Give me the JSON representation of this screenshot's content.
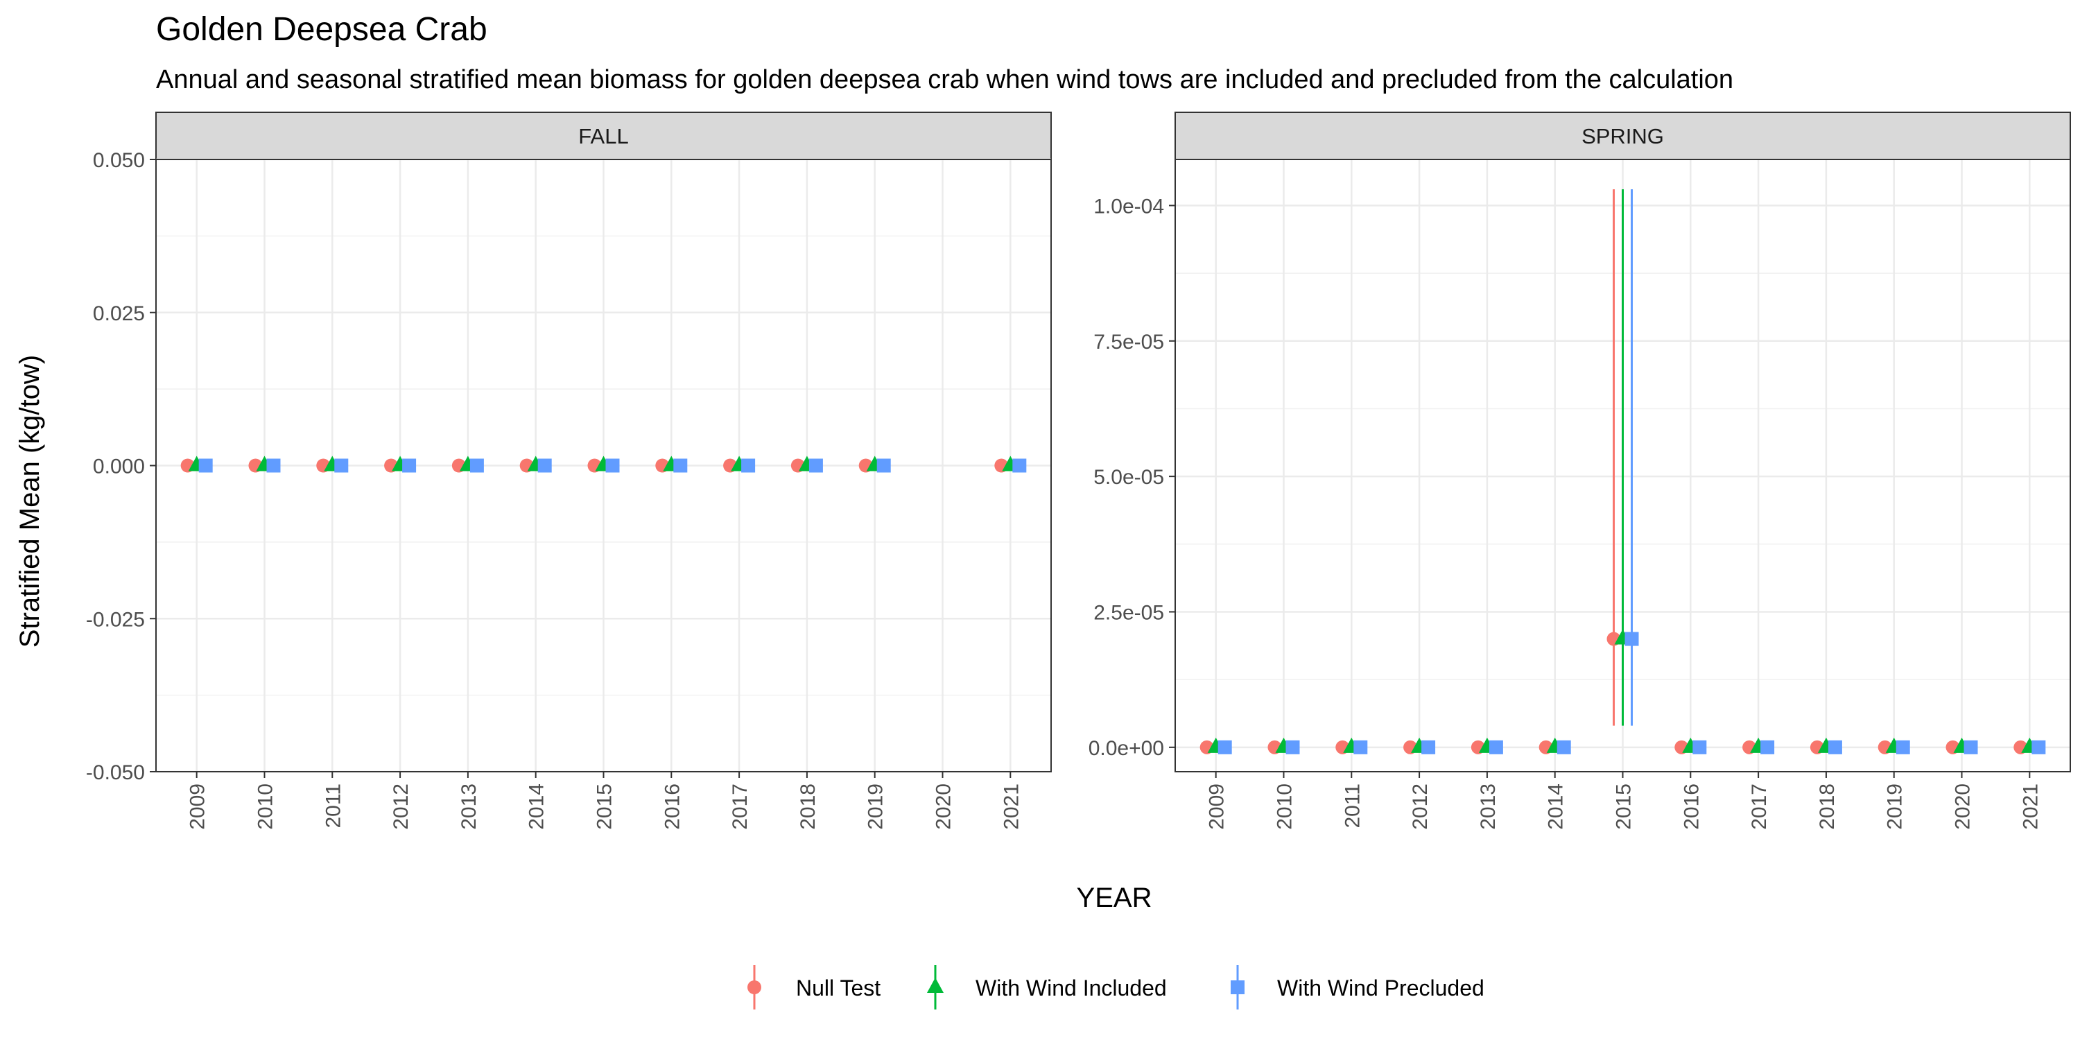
{
  "chart_data": {
    "type": "scatter",
    "title": "Golden Deepsea Crab",
    "subtitle": "Annual and seasonal stratified mean biomass for golden deepsea crab when wind tows are included and precluded from the calculation",
    "xlabel": "YEAR",
    "ylabel": "Stratified Mean (kg/tow)",
    "grid": true,
    "legend_position": "bottom",
    "series_styles": [
      {
        "name": "Null Test",
        "color": "#F8766D",
        "shape": "circle"
      },
      {
        "name": "With Wind Included",
        "color": "#00BA38",
        "shape": "triangle"
      },
      {
        "name": "With Wind Precluded",
        "color": "#619CFF",
        "shape": "square"
      }
    ],
    "panels": [
      {
        "name": "FALL",
        "x": [
          "2009",
          "2010",
          "2011",
          "2012",
          "2013",
          "2014",
          "2015",
          "2016",
          "2017",
          "2018",
          "2019",
          "2020",
          "2021"
        ],
        "ylim": [
          -0.05,
          0.05
        ],
        "y_ticks": [
          -0.05,
          -0.025,
          0,
          0.025,
          0.05
        ],
        "y_tick_labels": [
          "-0.050",
          "-0.025",
          "0.000",
          "0.025",
          "0.050"
        ],
        "series": [
          {
            "name": "Null Test",
            "points": [
              {
                "x": "2009",
                "y": 0
              },
              {
                "x": "2010",
                "y": 0
              },
              {
                "x": "2011",
                "y": 0
              },
              {
                "x": "2012",
                "y": 0
              },
              {
                "x": "2013",
                "y": 0
              },
              {
                "x": "2014",
                "y": 0
              },
              {
                "x": "2015",
                "y": 0
              },
              {
                "x": "2016",
                "y": 0
              },
              {
                "x": "2017",
                "y": 0
              },
              {
                "x": "2018",
                "y": 0
              },
              {
                "x": "2019",
                "y": 0
              },
              {
                "x": "2021",
                "y": 0
              }
            ]
          },
          {
            "name": "With Wind Included",
            "points": [
              {
                "x": "2009",
                "y": 0
              },
              {
                "x": "2010",
                "y": 0
              },
              {
                "x": "2011",
                "y": 0
              },
              {
                "x": "2012",
                "y": 0
              },
              {
                "x": "2013",
                "y": 0
              },
              {
                "x": "2014",
                "y": 0
              },
              {
                "x": "2015",
                "y": 0
              },
              {
                "x": "2016",
                "y": 0
              },
              {
                "x": "2017",
                "y": 0
              },
              {
                "x": "2018",
                "y": 0
              },
              {
                "x": "2019",
                "y": 0
              },
              {
                "x": "2021",
                "y": 0
              }
            ]
          },
          {
            "name": "With Wind Precluded",
            "points": [
              {
                "x": "2009",
                "y": 0
              },
              {
                "x": "2010",
                "y": 0
              },
              {
                "x": "2011",
                "y": 0
              },
              {
                "x": "2012",
                "y": 0
              },
              {
                "x": "2013",
                "y": 0
              },
              {
                "x": "2014",
                "y": 0
              },
              {
                "x": "2015",
                "y": 0
              },
              {
                "x": "2016",
                "y": 0
              },
              {
                "x": "2017",
                "y": 0
              },
              {
                "x": "2018",
                "y": 0
              },
              {
                "x": "2019",
                "y": 0
              },
              {
                "x": "2021",
                "y": 0
              }
            ]
          }
        ]
      },
      {
        "name": "SPRING",
        "x": [
          "2009",
          "2010",
          "2011",
          "2012",
          "2013",
          "2014",
          "2015",
          "2016",
          "2017",
          "2018",
          "2019",
          "2020",
          "2021"
        ],
        "ylim": [
          -4.5e-06,
          0.0001085
        ],
        "y_ticks": [
          0,
          2.5e-05,
          5e-05,
          7.5e-05,
          0.0001
        ],
        "y_tick_labels": [
          "0.0e+00",
          "2.5e-05",
          "5.0e-05",
          "7.5e-05",
          "1.0e-04"
        ],
        "series": [
          {
            "name": "Null Test",
            "points": [
              {
                "x": "2009",
                "y": 0
              },
              {
                "x": "2010",
                "y": 0
              },
              {
                "x": "2011",
                "y": 0
              },
              {
                "x": "2012",
                "y": 0
              },
              {
                "x": "2013",
                "y": 0
              },
              {
                "x": "2014",
                "y": 0
              },
              {
                "x": "2015",
                "y": 2e-05,
                "ymin": 4e-06,
                "ymax": 0.000103
              },
              {
                "x": "2016",
                "y": 0
              },
              {
                "x": "2017",
                "y": 0
              },
              {
                "x": "2018",
                "y": 0
              },
              {
                "x": "2019",
                "y": 0
              },
              {
                "x": "2020",
                "y": 0
              },
              {
                "x": "2021",
                "y": 0
              }
            ]
          },
          {
            "name": "With Wind Included",
            "points": [
              {
                "x": "2009",
                "y": 0
              },
              {
                "x": "2010",
                "y": 0
              },
              {
                "x": "2011",
                "y": 0
              },
              {
                "x": "2012",
                "y": 0
              },
              {
                "x": "2013",
                "y": 0
              },
              {
                "x": "2014",
                "y": 0
              },
              {
                "x": "2015",
                "y": 2e-05,
                "ymin": 4e-06,
                "ymax": 0.000103
              },
              {
                "x": "2016",
                "y": 0
              },
              {
                "x": "2017",
                "y": 0
              },
              {
                "x": "2018",
                "y": 0
              },
              {
                "x": "2019",
                "y": 0
              },
              {
                "x": "2020",
                "y": 0
              },
              {
                "x": "2021",
                "y": 0
              }
            ]
          },
          {
            "name": "With Wind Precluded",
            "points": [
              {
                "x": "2009",
                "y": 0
              },
              {
                "x": "2010",
                "y": 0
              },
              {
                "x": "2011",
                "y": 0
              },
              {
                "x": "2012",
                "y": 0
              },
              {
                "x": "2013",
                "y": 0
              },
              {
                "x": "2014",
                "y": 0
              },
              {
                "x": "2015",
                "y": 2e-05,
                "ymin": 4e-06,
                "ymax": 0.000103
              },
              {
                "x": "2016",
                "y": 0
              },
              {
                "x": "2017",
                "y": 0
              },
              {
                "x": "2018",
                "y": 0
              },
              {
                "x": "2019",
                "y": 0
              },
              {
                "x": "2020",
                "y": 0
              },
              {
                "x": "2021",
                "y": 0
              }
            ]
          }
        ]
      }
    ]
  }
}
